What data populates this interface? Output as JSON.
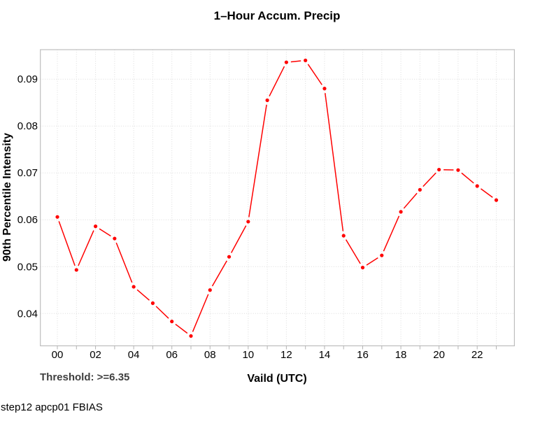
{
  "annotations": {
    "threshold": "Threshold: >=6.35",
    "footer": "step12 apcp01 FBIAS"
  },
  "colors": {
    "line": "#ff0000",
    "grid": "#dcdcdc",
    "border": "#bdbdbd",
    "tick": "#b3b3b3",
    "text": "#000000",
    "threshold_text": "#404040"
  },
  "chart_data": {
    "type": "line",
    "title": "1–Hour Accum. Precip",
    "xlabel": "Vaild (UTC)",
    "ylabel": "90th Percentile Intensity",
    "x": [
      0,
      1,
      2,
      3,
      4,
      5,
      6,
      7,
      8,
      9,
      10,
      11,
      12,
      13,
      14,
      15,
      16,
      17,
      18,
      19,
      20,
      21,
      22,
      23
    ],
    "values": [
      0.0606,
      0.0493,
      0.0586,
      0.056,
      0.0457,
      0.0422,
      0.0383,
      0.0352,
      0.045,
      0.0521,
      0.0596,
      0.0855,
      0.0936,
      0.094,
      0.088,
      0.0566,
      0.0498,
      0.0524,
      0.0617,
      0.0664,
      0.0707,
      0.0706,
      0.0672,
      0.0642
    ],
    "x_tick_hours": [
      0,
      2,
      4,
      6,
      8,
      10,
      12,
      14,
      16,
      18,
      20,
      22
    ],
    "x_tick_labels": [
      "00",
      "02",
      "04",
      "06",
      "08",
      "10",
      "12",
      "14",
      "16",
      "18",
      "20",
      "22"
    ],
    "y_ticks": [
      0.04,
      0.05,
      0.06,
      0.07,
      0.08,
      0.09
    ],
    "xlim": [
      -0.891,
      23.95
    ],
    "ylim": [
      0.0331,
      0.0963
    ],
    "grid": true,
    "legend": null,
    "marker": "filled-circle",
    "style": "points-with-broken-line"
  }
}
